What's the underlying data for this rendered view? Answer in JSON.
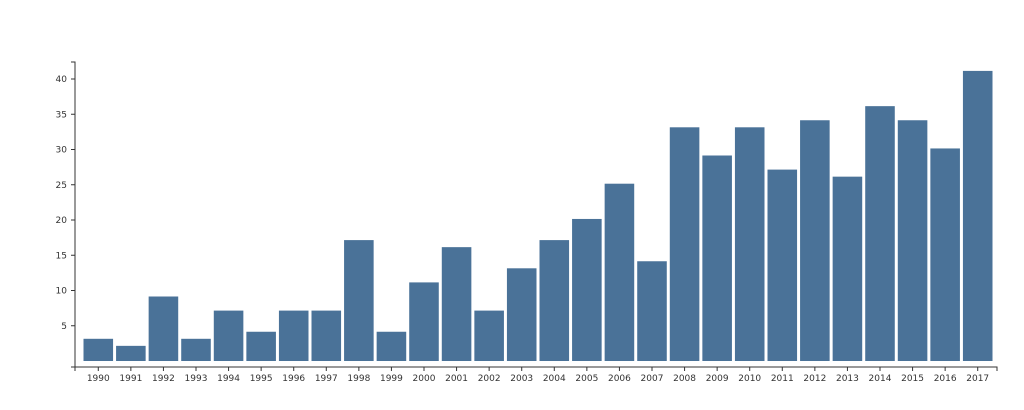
{
  "chart_data": {
    "type": "bar",
    "title": "",
    "xlabel": "",
    "ylabel": "",
    "categories": [
      "1990",
      "1991",
      "1992",
      "1993",
      "1994",
      "1995",
      "1996",
      "1997",
      "1998",
      "1999",
      "2000",
      "2001",
      "2002",
      "2003",
      "2004",
      "2005",
      "2006",
      "2007",
      "2008",
      "2009",
      "2010",
      "2011",
      "2012",
      "2013",
      "2014",
      "2015",
      "2016",
      "2017"
    ],
    "values": [
      4,
      3,
      10,
      4,
      8,
      5,
      8,
      8,
      18,
      5,
      12,
      17,
      8,
      14,
      18,
      21,
      26,
      15,
      34,
      30,
      34,
      28,
      35,
      27,
      37,
      35,
      31,
      42
    ],
    "ylim": [
      0,
      44
    ],
    "yticks": [
      5,
      10,
      15,
      20,
      25,
      30,
      35,
      40
    ],
    "bar_color": "#4a7298",
    "grid": false,
    "legend": "none"
  }
}
